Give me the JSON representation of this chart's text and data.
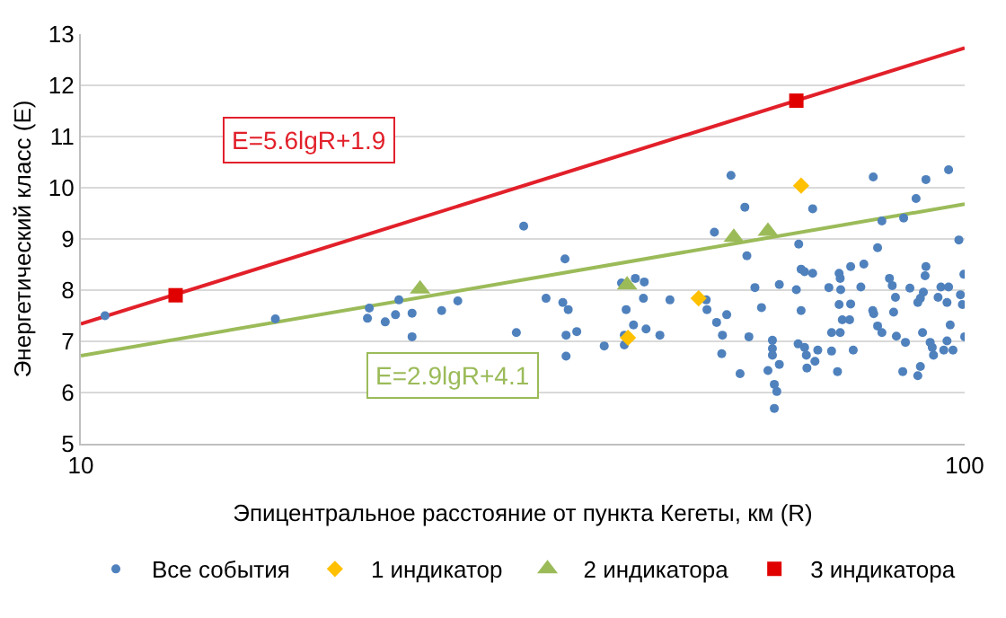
{
  "chart_data": {
    "type": "scatter",
    "xlabel": "Эпицентральное расстояние от пункта Кегеты, км (R)",
    "ylabel": "Энергетический класс (E)",
    "log": "x",
    "grid": "y",
    "legend": "bottom",
    "xlim": [
      10,
      100
    ],
    "xticks": [
      10,
      100
    ],
    "ylim": [
      5,
      13
    ],
    "yticks": [
      5,
      6,
      7,
      8,
      9,
      10,
      11,
      12,
      13
    ],
    "annotations": [
      "E=5.6lgR+1.9",
      "E=2.9lgR+4.1"
    ],
    "series": [
      {
        "type": "line",
        "color": "#e2202a",
        "marker": "none",
        "line_style": "solid",
        "x": [
          10,
          100
        ],
        "values": [
          7.34,
          12.73
        ]
      },
      {
        "type": "line",
        "color": "#9bbb59",
        "marker": "none",
        "line_style": "solid",
        "x": [
          10,
          100
        ],
        "values": [
          6.72,
          9.68
        ]
      },
      {
        "name": "Все события",
        "color": "#4f81bd",
        "marker": "circle",
        "x": [
          10.65,
          16.6,
          21.2,
          21.1,
          22.1,
          22.7,
          22.9,
          23.7,
          23.7,
          25.6,
          26.7,
          31.7,
          31.1,
          35.3,
          35.1,
          35.6,
          35.4,
          36.4,
          35.4,
          33.6,
          39.1,
          41.2,
          41.2,
          41.4,
          40.9,
          42.4,
          43.4,
          43.3,
          42.2,
          43.6,
          45.2,
          46.4,
          52.1,
          54.4,
          56.4,
          56.7,
          51.0,
          51.1,
          52.4,
          53.8,
          53.2,
          53.1,
          55.7,
          57.0,
          57.9,
          58.9,
          61.7,
          60.6,
          60.6,
          60.6,
          59.9,
          61.7,
          60.9,
          61.3,
          60.9,
          64.5,
          64.9,
          67.3,
          65.3,
          65.9,
          67.3,
          65.3,
          64.8,
          65.9,
          66.2,
          66.3,
          67.7,
          68.2,
          70.2,
          70.7,
          71.8,
          72.1,
          72.3,
          72.4,
          72.1,
          72.7,
          70.7,
          72.3,
          74.3,
          74.3,
          74.1,
          74.8,
          76.3,
          76.9,
          79.7,
          78.8,
          80.6,
          78.7,
          78.9,
          79.7,
          80.6,
          82.2,
          82.8,
          83.5,
          83.1,
          83.7,
          85.3,
          85.1,
          85.7,
          86.7,
          88.1,
          89.1,
          89.8,
          88.5,
          89.6,
          90.4,
          90.2,
          88.5,
          89.1,
          90.4,
          91.4,
          92.2,
          91.9,
          93.3,
          94.0,
          95.9,
          95.9,
          95.5,
          96.3,
          94.7,
          95.5,
          97.0,
          98.5,
          98.9,
          99.8,
          99.4,
          100
        ],
        "values": [
          7.5,
          7.44,
          7.65,
          7.45,
          7.38,
          7.52,
          7.81,
          7.55,
          7.09,
          7.6,
          7.79,
          9.25,
          7.17,
          8.61,
          7.76,
          7.62,
          7.12,
          7.19,
          6.71,
          7.84,
          6.91,
          6.93,
          7.12,
          7.62,
          8.14,
          8.23,
          8.16,
          7.84,
          7.32,
          7.24,
          7.12,
          7.81,
          9.13,
          10.24,
          9.62,
          8.67,
          7.81,
          7.62,
          7.37,
          7.52,
          7.12,
          6.76,
          6.37,
          7.09,
          8.05,
          7.66,
          8.11,
          7.02,
          6.86,
          6.73,
          6.43,
          6.55,
          6.16,
          6.02,
          5.69,
          8.01,
          8.9,
          9.59,
          8.41,
          8.36,
          8.33,
          7.6,
          6.95,
          6.88,
          6.73,
          6.48,
          6.61,
          6.83,
          8.05,
          6.81,
          6.41,
          8.33,
          8.23,
          8.01,
          7.72,
          7.42,
          7.17,
          7.17,
          8.46,
          7.73,
          7.42,
          6.83,
          8.06,
          8.51,
          8.83,
          10.21,
          9.35,
          7.6,
          7.54,
          7.3,
          7.17,
          8.23,
          8.09,
          7.86,
          7.57,
          7.1,
          9.41,
          6.41,
          6.98,
          8.04,
          9.79,
          7.84,
          7.96,
          7.76,
          7.17,
          8.46,
          8.28,
          6.33,
          6.51,
          10.16,
          6.98,
          6.73,
          6.88,
          7.86,
          8.06,
          10.35,
          8.06,
          7.76,
          7.32,
          6.83,
          7.01,
          6.83,
          8.98,
          7.91,
          8.31,
          7.72,
          7.09
        ]
      },
      {
        "name": "1 индикатор",
        "color": "#ffc000",
        "marker": "diamond",
        "x": [
          41.6,
          50.0,
          65.3
        ],
        "values": [
          7.07,
          7.84,
          10.04
        ]
      },
      {
        "name": "2 индикатора",
        "color": "#9bbb59",
        "marker": "triangle",
        "x": [
          24.2,
          41.5,
          54.8,
          59.9
        ],
        "values": [
          8.02,
          8.1,
          9.03,
          9.15
        ]
      },
      {
        "name": "3 индикатора",
        "color": "#e00000",
        "marker": "square",
        "x": [
          12.8,
          64.5
        ],
        "values": [
          7.9,
          11.7
        ]
      }
    ]
  }
}
